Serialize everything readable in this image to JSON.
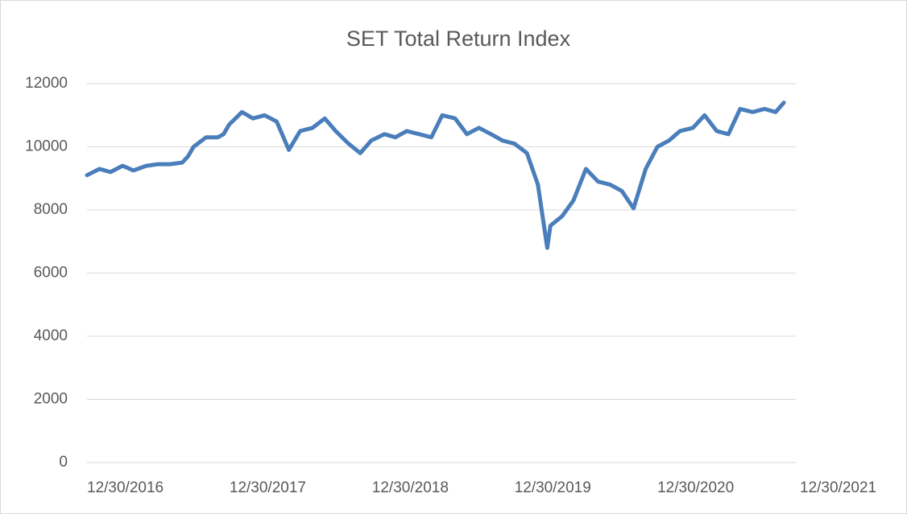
{
  "chart_data": {
    "type": "line",
    "title": "SET Total Return Index",
    "x": [
      "12/30/2016",
      "1/31/2017",
      "2/28/2017",
      "3/31/2017",
      "4/28/2017",
      "5/31/2017",
      "6/30/2017",
      "7/31/2017",
      "8/31/2017",
      "9/15/2017",
      "9/29/2017",
      "10/31/2017",
      "11/30/2017",
      "12/15/2017",
      "12/29/2017",
      "1/31/2018",
      "2/28/2018",
      "3/30/2018",
      "4/30/2018",
      "5/31/2018",
      "6/29/2018",
      "7/31/2018",
      "8/31/2018",
      "9/28/2018",
      "10/31/2018",
      "11/30/2018",
      "12/28/2018",
      "1/31/2019",
      "2/28/2019",
      "3/29/2019",
      "4/30/2019",
      "5/31/2019",
      "6/28/2019",
      "7/31/2019",
      "8/30/2019",
      "9/30/2019",
      "10/31/2019",
      "11/29/2019",
      "12/30/2019",
      "1/31/2020",
      "2/28/2020",
      "3/23/2020",
      "3/31/2020",
      "4/30/2020",
      "5/29/2020",
      "6/30/2020",
      "7/31/2020",
      "8/31/2020",
      "9/30/2020",
      "10/30/2020",
      "11/30/2020",
      "12/30/2020",
      "1/29/2021",
      "2/26/2021",
      "3/31/2021",
      "4/30/2021",
      "5/31/2021",
      "6/30/2021",
      "7/30/2021",
      "8/31/2021",
      "9/30/2021",
      "10/29/2021",
      "11/19/2021"
    ],
    "series": [
      {
        "name": "SET Total Return Index",
        "color": "#4a7ebb",
        "values": [
          9100,
          9300,
          9200,
          9400,
          9250,
          9400,
          9450,
          9450,
          9500,
          9700,
          10000,
          10300,
          10300,
          10400,
          10700,
          11100,
          10900,
          11000,
          10800,
          9900,
          10500,
          10600,
          10900,
          10500,
          10100,
          9800,
          10200,
          10400,
          10300,
          10500,
          10400,
          10300,
          11000,
          10900,
          10400,
          10600,
          10400,
          10200,
          10100,
          9800,
          8800,
          6800,
          7500,
          7800,
          8300,
          9300,
          8900,
          8800,
          8600,
          8050,
          9300,
          10000,
          10200,
          10500,
          10600,
          11000,
          10500,
          10400,
          11200,
          11100,
          11200,
          11100,
          11400
        ]
      }
    ],
    "xlim": [
      "12/30/2016",
      "12/30/2021"
    ],
    "xticks": [
      "12/30/2016",
      "12/30/2017",
      "12/30/2018",
      "12/30/2019",
      "12/30/2020",
      "12/30/2021"
    ],
    "ylim": [
      0,
      12000
    ],
    "yticks": [
      0,
      2000,
      4000,
      6000,
      8000,
      10000,
      12000
    ],
    "grid": true
  }
}
